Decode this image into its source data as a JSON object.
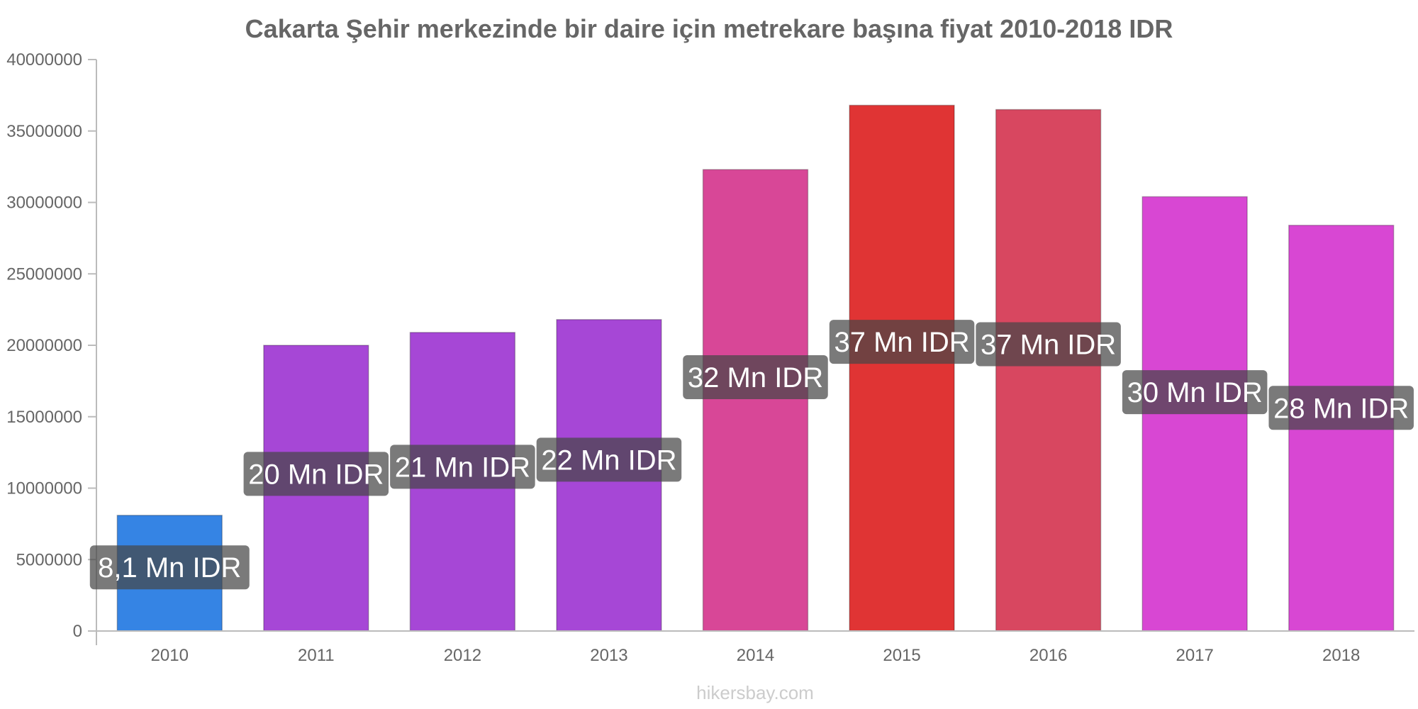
{
  "chart_data": {
    "type": "bar",
    "title": "Cakarta Şehir merkezinde bir daire için metrekare başına fiyat 2010-2018 IDR",
    "categories": [
      "2010",
      "2011",
      "2012",
      "2013",
      "2014",
      "2015",
      "2016",
      "2017",
      "2018"
    ],
    "values": [
      8100000,
      20000000,
      20900000,
      21800000,
      32300000,
      36800000,
      36500000,
      30400000,
      28400000
    ],
    "data_labels": [
      "8,1 Mn IDR",
      "20 Mn IDR",
      "21 Mn IDR",
      "22 Mn IDR",
      "32 Mn IDR",
      "37 Mn IDR",
      "37 Mn IDR",
      "30 Mn IDR",
      "28 Mn IDR"
    ],
    "colors": [
      "#3584e4",
      "#a647d6",
      "#a647d6",
      "#a647d6",
      "#d84797",
      "#e03434",
      "#d84760",
      "#d847d3",
      "#d847d3"
    ],
    "ylim": [
      0,
      40000000
    ],
    "yticks": [
      "0",
      "5000000",
      "10000000",
      "15000000",
      "20000000",
      "25000000",
      "30000000",
      "35000000",
      "40000000"
    ],
    "xlabel": "",
    "ylabel": "",
    "grid": false
  },
  "watermark": "hikersbay.com"
}
